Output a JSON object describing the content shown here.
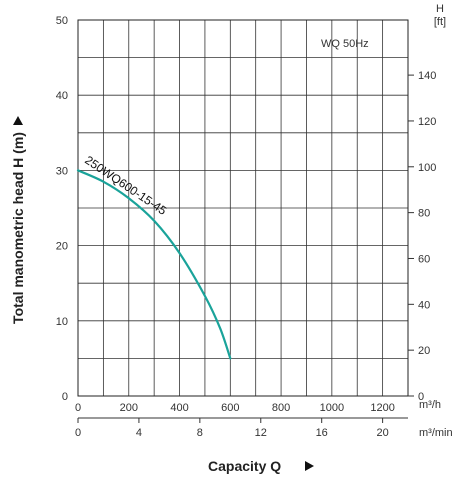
{
  "chart_data": {
    "type": "line",
    "annotation": "WQ  50Hz",
    "ylabel": "Total manometric head H (m)",
    "xlabel": "Capacity Q",
    "ylim": [
      0,
      50
    ],
    "y_ticks": [
      0,
      10,
      20,
      30,
      40,
      50
    ],
    "x_m3h_lim": [
      0,
      1300
    ],
    "x_m3h_ticks": [
      0,
      200,
      400,
      600,
      800,
      1000,
      1200
    ],
    "x_m3h_unit": "m³/h",
    "x_m3min_ticks": [
      0,
      4,
      8,
      12,
      16,
      20
    ],
    "x_m3min_unit": "m³/min",
    "y2_unit_H": "H",
    "y2_unit_ft": "[ft]",
    "y2_ticks_ft": [
      0,
      20,
      40,
      60,
      80,
      100,
      120,
      140
    ],
    "grid": true,
    "series": [
      {
        "name": "250WQ600-15-45",
        "color": "#1aa39a",
        "x": [
          0,
          100,
          200,
          300,
          400,
          500,
          560,
          600
        ],
        "y": [
          30,
          28.5,
          26.3,
          23.3,
          19.0,
          13.3,
          9.0,
          5.0
        ]
      }
    ]
  }
}
